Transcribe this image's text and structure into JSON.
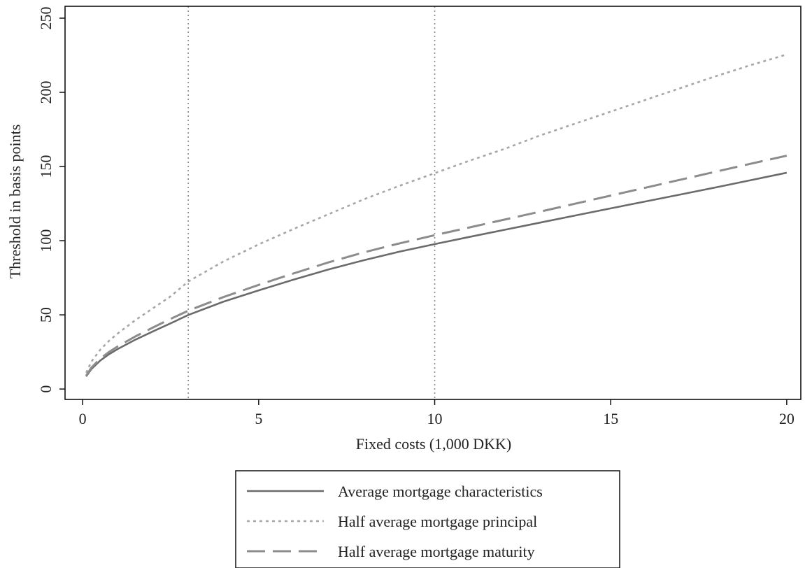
{
  "chart_data": {
    "type": "line",
    "title": "",
    "xlabel": "Fixed costs (1,000 DKK)",
    "ylabel": "Threshold in basis points",
    "xlim": [
      -0.5,
      20.4
    ],
    "ylim": [
      -7,
      258
    ],
    "xticks": [
      0,
      5,
      10,
      15,
      20
    ],
    "xtick_labels": [
      "0",
      "5",
      "10",
      "15",
      "20"
    ],
    "yticks": [
      0,
      50,
      100,
      150,
      200,
      250
    ],
    "ytick_labels": [
      "0",
      "50",
      "100",
      "150",
      "200",
      "250"
    ],
    "grid": false,
    "reference_lines_x": [
      3,
      10
    ],
    "x": [
      0.1,
      0.25,
      0.5,
      0.75,
      1,
      1.5,
      2,
      2.5,
      3,
      4,
      5,
      6,
      7,
      8,
      9,
      10,
      11,
      12,
      13,
      14,
      15,
      16,
      17,
      18,
      19,
      20
    ],
    "series": [
      {
        "name": "Average mortgage characteristics",
        "style": "solid",
        "color": "#6b6b6b",
        "values": [
          8.5,
          13.5,
          19.2,
          23.5,
          27,
          33.3,
          38.9,
          44.3,
          49.9,
          58.9,
          66.5,
          73.8,
          80.7,
          86.9,
          92.6,
          97.7,
          102.6,
          107.4,
          112.2,
          117,
          121.8,
          126.5,
          131.2,
          136,
          140.9,
          145.8
        ]
      },
      {
        "name": "Half average mortgage principal",
        "style": "dotted",
        "color": "#a6a6a6",
        "values": [
          11,
          18.5,
          26.5,
          32.5,
          37.5,
          46.5,
          54.5,
          62.5,
          72.5,
          86,
          97.5,
          108,
          118,
          128,
          137,
          145.5,
          154,
          162,
          171,
          179,
          187,
          195,
          203,
          211,
          218.5,
          225.5
        ]
      },
      {
        "name": "Half average mortgage maturity",
        "style": "dashed",
        "color": "#8c8c8c",
        "values": [
          9,
          14.5,
          20.5,
          25,
          28.8,
          35.5,
          41.5,
          47.3,
          52.8,
          62,
          70.2,
          78,
          85.5,
          92.2,
          98.2,
          103.7,
          109,
          114.3,
          119.6,
          125,
          130.4,
          135.8,
          141.2,
          146.6,
          152,
          157.3
        ]
      }
    ],
    "legend": {
      "position": "bottom-center",
      "entries": [
        "Average mortgage characteristics",
        "Half average mortgage principal",
        "Half average mortgage maturity"
      ]
    },
    "colors": {
      "axis": "#111111",
      "reference_line": "#8a8a8a"
    }
  }
}
